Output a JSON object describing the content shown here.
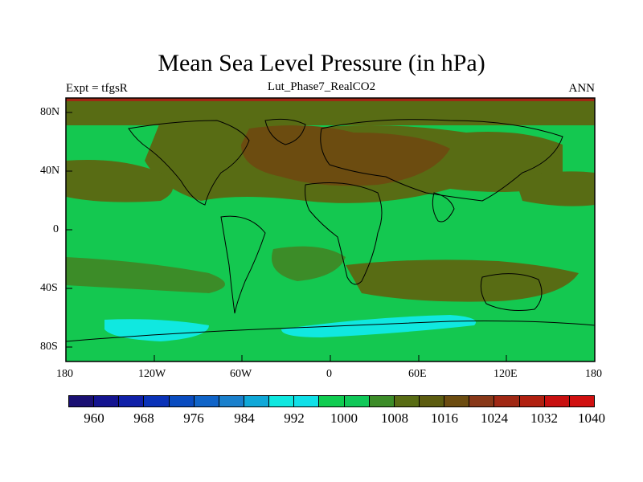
{
  "title": "Mean Sea Level Pressure (in hPa)",
  "subtitle_left": "Expt = tfgsR",
  "subtitle_center": "Lut_Phase7_RealCO2",
  "subtitle_right": "ANN",
  "x_ticks": [
    "180",
    "120W",
    "60W",
    "0",
    "60E",
    "120E",
    "180"
  ],
  "y_ticks": [
    "80N",
    "40N",
    "0",
    "40S",
    "80S"
  ],
  "legend": {
    "colors": [
      "#1a1073",
      "#141490",
      "#1020a8",
      "#0a32b8",
      "#0a4cc0",
      "#1064c8",
      "#1a80cc",
      "#10a8d8",
      "#10e8e0",
      "#10e0e8",
      "#10cc50",
      "#10c858",
      "#3c8c28",
      "#586c14",
      "#5c5c10",
      "#6c4c10",
      "#883818",
      "#a02814",
      "#b02010",
      "#c81010",
      "#d01010"
    ],
    "labels": [
      "960",
      "968",
      "976",
      "984",
      "992",
      "1000",
      "1008",
      "1016",
      "1024",
      "1032",
      "1040"
    ]
  },
  "colors": {
    "dark_brown": "#6c4c10",
    "olive": "#586c14",
    "mid_green": "#3c8c28",
    "green": "#14c850",
    "cyan": "#10e8e0",
    "red_top": "#a02814"
  }
}
